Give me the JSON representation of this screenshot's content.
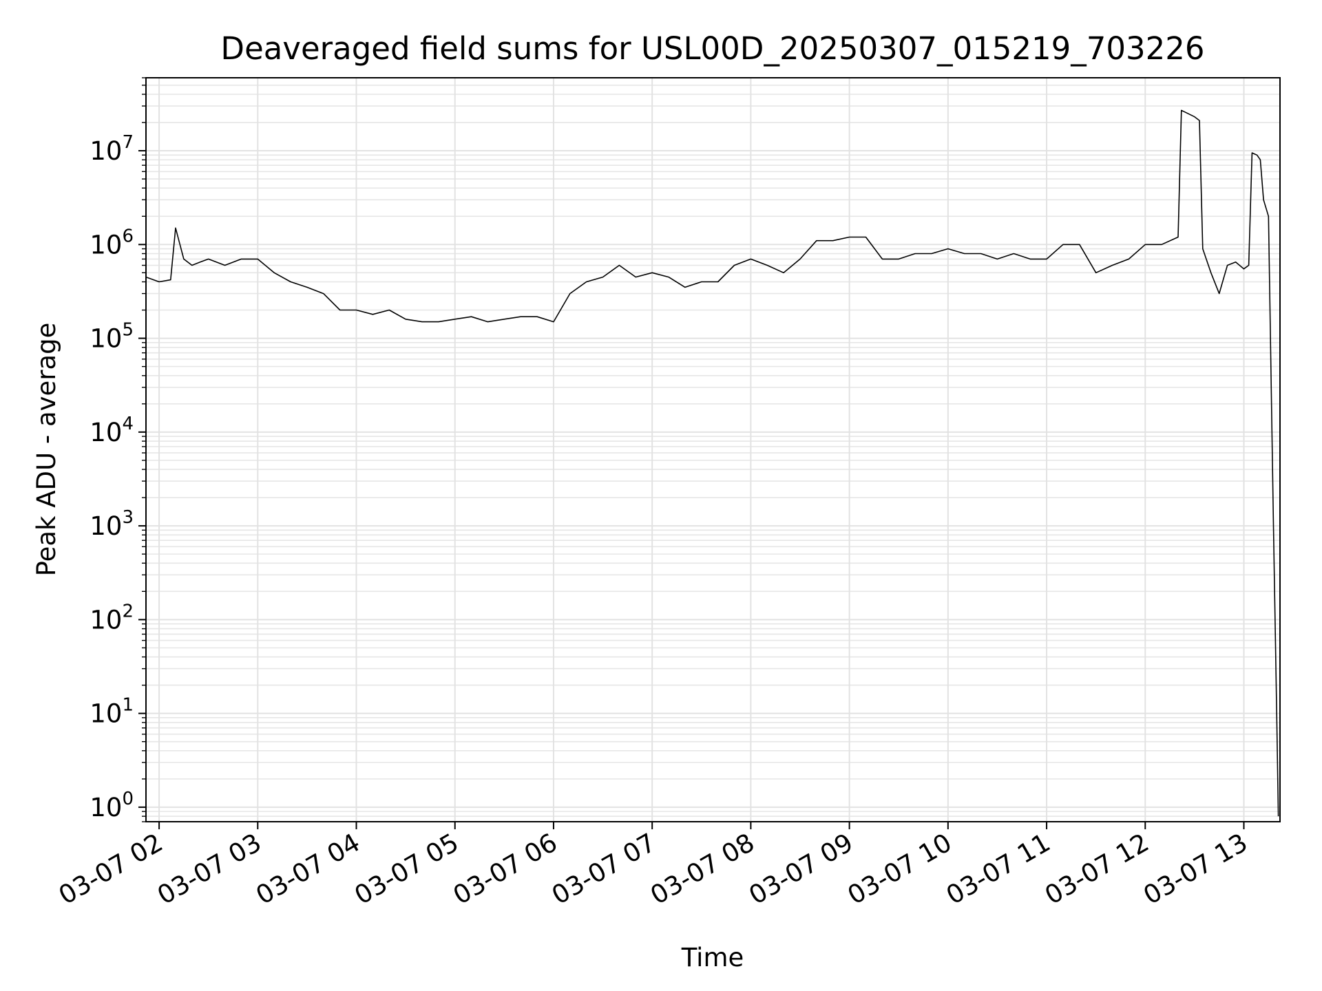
{
  "chart_data": {
    "type": "line",
    "title": "Deaveraged field sums for USL00D_20250307_015219_703226",
    "xlabel": "Time",
    "ylabel": "Peak ADU - average",
    "yscale": "log",
    "grid": true,
    "grid_minor": true,
    "xlim": [
      "2025-03-07 01:52",
      "2025-03-07 13:22"
    ],
    "ylim": [
      0.7,
      60000000
    ],
    "x_ticks": [
      "03-07 02",
      "03-07 03",
      "03-07 04",
      "03-07 05",
      "03-07 06",
      "03-07 07",
      "03-07 08",
      "03-07 09",
      "03-07 10",
      "03-07 11",
      "03-07 12",
      "03-07 13"
    ],
    "y_ticks": [
      {
        "value": 1,
        "base": "10",
        "exp": "0"
      },
      {
        "value": 10,
        "base": "10",
        "exp": "1"
      },
      {
        "value": 100,
        "base": "10",
        "exp": "2"
      },
      {
        "value": 1000,
        "base": "10",
        "exp": "3"
      },
      {
        "value": 10000,
        "base": "10",
        "exp": "4"
      },
      {
        "value": 100000,
        "base": "10",
        "exp": "5"
      },
      {
        "value": 1000000,
        "base": "10",
        "exp": "6"
      },
      {
        "value": 10000000,
        "base": "10",
        "exp": "7"
      }
    ],
    "series": [
      {
        "color": "#000000",
        "x": [
          "01:52",
          "02:00",
          "02:07",
          "02:10",
          "02:15",
          "02:20",
          "02:25",
          "02:30",
          "02:40",
          "02:50",
          "03:00",
          "03:10",
          "03:20",
          "03:30",
          "03:40",
          "03:50",
          "04:00",
          "04:10",
          "04:20",
          "04:30",
          "04:40",
          "04:50",
          "05:00",
          "05:10",
          "05:20",
          "05:30",
          "05:40",
          "05:50",
          "06:00",
          "06:10",
          "06:20",
          "06:30",
          "06:40",
          "06:50",
          "07:00",
          "07:10",
          "07:20",
          "07:30",
          "07:40",
          "07:50",
          "08:00",
          "08:10",
          "08:20",
          "08:30",
          "08:40",
          "08:50",
          "09:00",
          "09:10",
          "09:20",
          "09:30",
          "09:40",
          "09:50",
          "10:00",
          "10:10",
          "10:20",
          "10:30",
          "10:40",
          "10:50",
          "11:00",
          "11:10",
          "11:20",
          "11:30",
          "11:40",
          "11:50",
          "12:00",
          "12:10",
          "12:20",
          "12:22",
          "12:30",
          "12:33",
          "12:35",
          "12:40",
          "12:45",
          "12:50",
          "12:55",
          "13:00",
          "13:03",
          "13:05",
          "13:08",
          "13:10",
          "13:12",
          "13:15",
          "13:18",
          "13:20",
          "13:21"
        ],
        "y": [
          450000,
          400000,
          420000,
          1500000,
          700000,
          600000,
          650000,
          700000,
          600000,
          700000,
          700000,
          500000,
          400000,
          350000,
          300000,
          200000,
          200000,
          180000,
          200000,
          160000,
          150000,
          150000,
          160000,
          170000,
          150000,
          160000,
          170000,
          170000,
          150000,
          300000,
          400000,
          450000,
          600000,
          450000,
          500000,
          450000,
          350000,
          400000,
          400000,
          600000,
          700000,
          600000,
          500000,
          700000,
          1100000,
          1100000,
          1200000,
          1200000,
          700000,
          700000,
          800000,
          800000,
          900000,
          800000,
          800000,
          700000,
          800000,
          700000,
          700000,
          1000000,
          1000000,
          500000,
          600000,
          700000,
          1000000,
          1000000,
          1200000,
          27000000,
          23000000,
          21000000,
          900000,
          500000,
          300000,
          600000,
          650000,
          550000,
          600000,
          9500000,
          9000000,
          8000000,
          3000000,
          2000000,
          1000,
          10,
          0.8
        ]
      }
    ]
  }
}
